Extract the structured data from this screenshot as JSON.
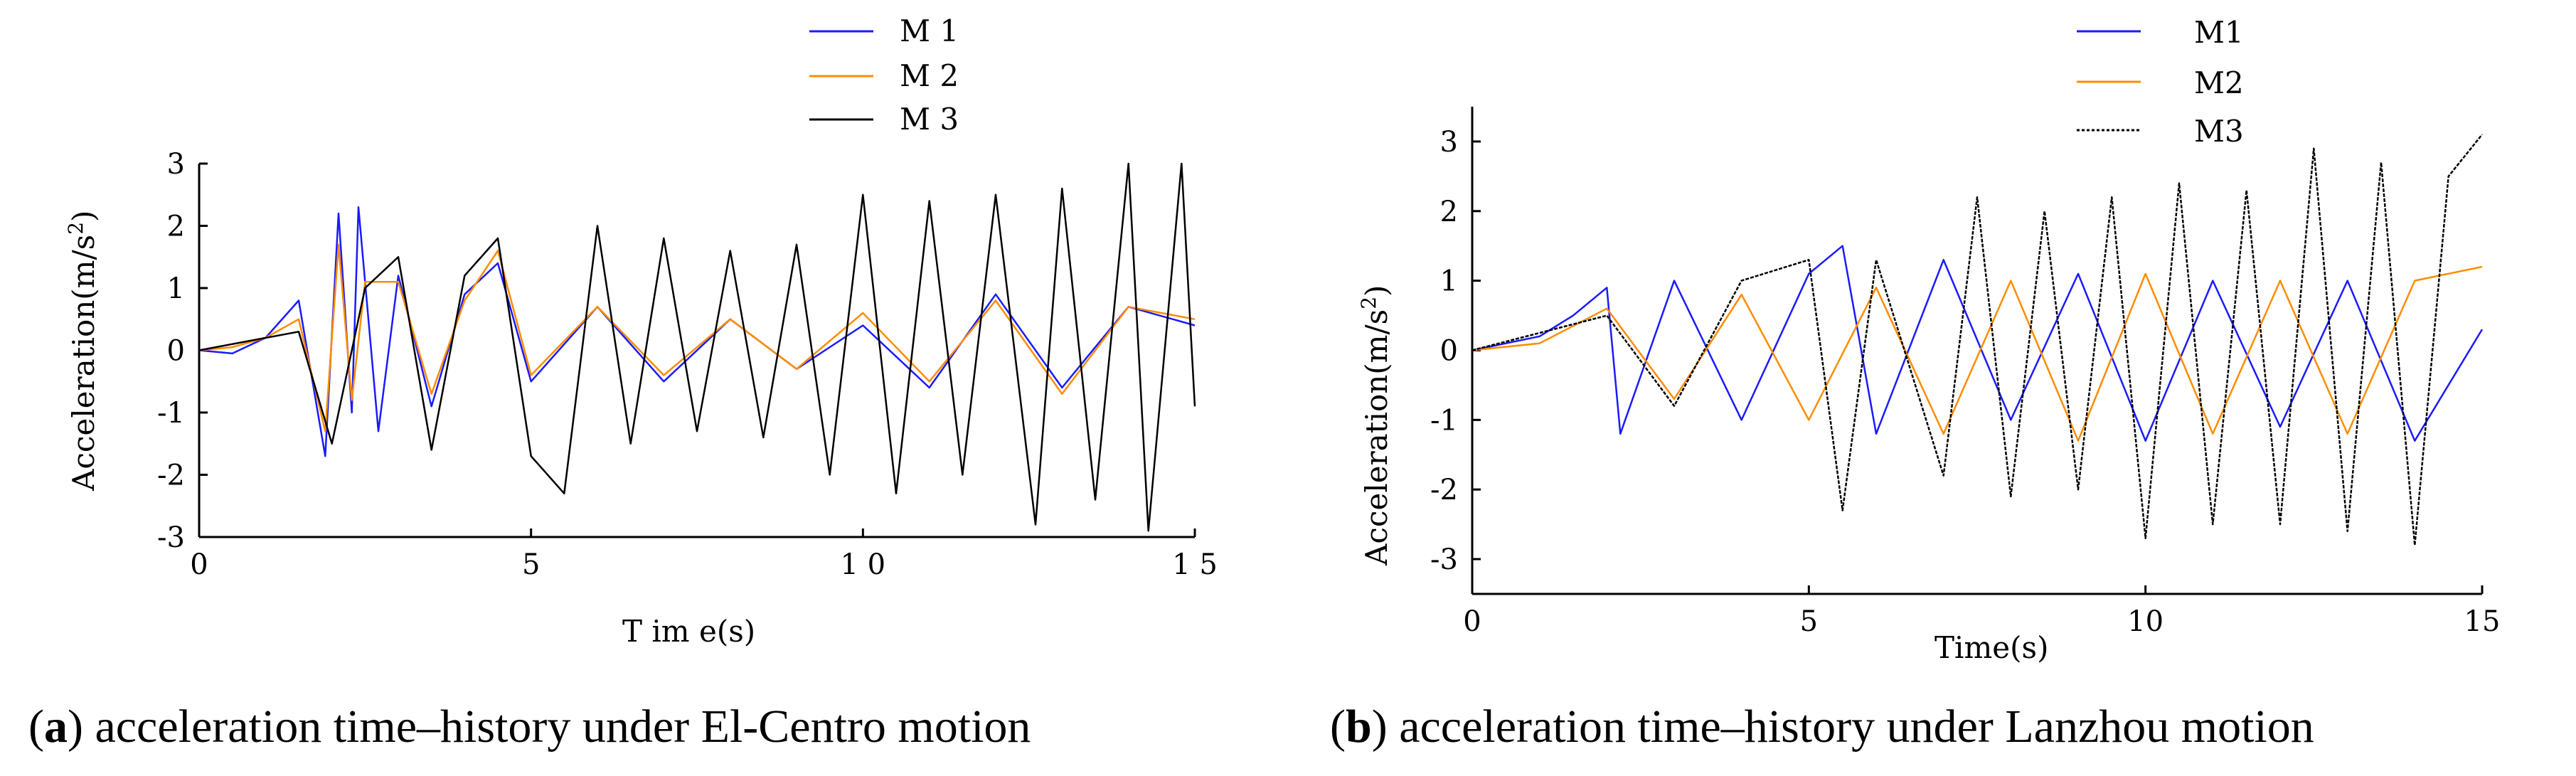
{
  "chart_data": [
    {
      "type": "line",
      "caption": {
        "letter": "a",
        "text": " acceleration time–history under El-Centro motion"
      },
      "xlabel": "T im e(s)",
      "ylabel": "Acceleration(m/s",
      "ylabel_sup": "2",
      "ylabel_tail": ")",
      "xlim": [
        0,
        15
      ],
      "ylim": [
        -3,
        3
      ],
      "xticks": [
        0,
        5,
        10,
        15
      ],
      "xtick_labels": [
        "0",
        "5",
        "1 0",
        "1 5"
      ],
      "yticks": [
        -3,
        -2,
        -1,
        0,
        1,
        2,
        3
      ],
      "ytick_labels": [
        "-3",
        "-2",
        "-1",
        "0",
        "1",
        "2",
        "3"
      ],
      "legend": [
        "M 1",
        "M 2",
        "M 3"
      ],
      "series": [
        {
          "name": "M 1",
          "color": "#1a1aff",
          "values": [
            [
              0,
              0
            ],
            [
              0.5,
              -0.05
            ],
            [
              1.0,
              0.2
            ],
            [
              1.5,
              0.8
            ],
            [
              1.9,
              -1.7
            ],
            [
              2.1,
              2.2
            ],
            [
              2.3,
              -1.0
            ],
            [
              2.4,
              2.3
            ],
            [
              2.7,
              -1.3
            ],
            [
              3.0,
              1.2
            ],
            [
              3.5,
              -0.9
            ],
            [
              4.0,
              0.9
            ],
            [
              4.5,
              1.4
            ],
            [
              5.0,
              -0.5
            ],
            [
              6.0,
              0.7
            ],
            [
              7.0,
              -0.5
            ],
            [
              8.0,
              0.5
            ],
            [
              9.0,
              -0.3
            ],
            [
              10.0,
              0.4
            ],
            [
              11.0,
              -0.6
            ],
            [
              12.0,
              0.9
            ],
            [
              13.0,
              -0.6
            ],
            [
              14.0,
              0.7
            ],
            [
              15.0,
              0.4
            ]
          ]
        },
        {
          "name": "M 2",
          "color": "#ff8c00",
          "values": [
            [
              0,
              0
            ],
            [
              0.5,
              0.05
            ],
            [
              1.0,
              0.2
            ],
            [
              1.5,
              0.5
            ],
            [
              1.9,
              -1.3
            ],
            [
              2.1,
              1.7
            ],
            [
              2.3,
              -0.8
            ],
            [
              2.5,
              1.1
            ],
            [
              3.0,
              1.1
            ],
            [
              3.5,
              -0.7
            ],
            [
              4.0,
              0.8
            ],
            [
              4.5,
              1.6
            ],
            [
              5.0,
              -0.4
            ],
            [
              6.0,
              0.7
            ],
            [
              7.0,
              -0.4
            ],
            [
              8.0,
              0.5
            ],
            [
              9.0,
              -0.3
            ],
            [
              10.0,
              0.6
            ],
            [
              11.0,
              -0.5
            ],
            [
              12.0,
              0.8
            ],
            [
              13.0,
              -0.7
            ],
            [
              14.0,
              0.7
            ],
            [
              15.0,
              0.5
            ]
          ]
        },
        {
          "name": "M 3",
          "color": "#000000",
          "values": [
            [
              0,
              0
            ],
            [
              1.5,
              0.3
            ],
            [
              2.0,
              -1.5
            ],
            [
              2.5,
              1.0
            ],
            [
              3.0,
              1.5
            ],
            [
              3.5,
              -1.6
            ],
            [
              4.0,
              1.2
            ],
            [
              4.5,
              1.8
            ],
            [
              5.0,
              -1.7
            ],
            [
              5.5,
              -2.3
            ],
            [
              6.0,
              2.0
            ],
            [
              6.5,
              -1.5
            ],
            [
              7.0,
              1.8
            ],
            [
              7.5,
              -1.3
            ],
            [
              8.0,
              1.6
            ],
            [
              8.5,
              -1.4
            ],
            [
              9.0,
              1.7
            ],
            [
              9.5,
              -2.0
            ],
            [
              10.0,
              2.5
            ],
            [
              10.5,
              -2.3
            ],
            [
              11.0,
              2.4
            ],
            [
              11.5,
              -2.0
            ],
            [
              12.0,
              2.5
            ],
            [
              12.6,
              -2.8
            ],
            [
              13.0,
              2.6
            ],
            [
              13.5,
              -2.4
            ],
            [
              14.0,
              3.0
            ],
            [
              14.3,
              -2.9
            ],
            [
              14.8,
              3.0
            ],
            [
              15.0,
              -0.9
            ]
          ]
        }
      ]
    },
    {
      "type": "line",
      "caption": {
        "letter": "b",
        "text": " acceleration time–history under Lanzhou motion"
      },
      "xlabel": "Time(s)",
      "ylabel": "Acceleration(m/s",
      "ylabel_sup": "2",
      "ylabel_tail": ")",
      "xlim": [
        0,
        15
      ],
      "ylim": [
        -3.5,
        3.5
      ],
      "xticks": [
        0,
        5,
        10,
        15
      ],
      "xtick_labels": [
        "0",
        "5",
        "10",
        "15"
      ],
      "yticks": [
        -3,
        -2,
        -1,
        0,
        1,
        2,
        3
      ],
      "ytick_labels": [
        "-3",
        "-2",
        "-1",
        "0",
        "1",
        "2",
        "3"
      ],
      "legend": [
        "M1",
        "M2",
        "M3"
      ],
      "series": [
        {
          "name": "M1",
          "color": "#1a1aff",
          "values": [
            [
              0,
              0
            ],
            [
              1,
              0.2
            ],
            [
              1.5,
              0.5
            ],
            [
              2.0,
              0.9
            ],
            [
              2.2,
              -1.2
            ],
            [
              3.0,
              1.0
            ],
            [
              4.0,
              -1.0
            ],
            [
              5.0,
              1.1
            ],
            [
              5.5,
              1.5
            ],
            [
              6.0,
              -1.2
            ],
            [
              7.0,
              1.3
            ],
            [
              8.0,
              -1.0
            ],
            [
              9.0,
              1.1
            ],
            [
              10.0,
              -1.3
            ],
            [
              11.0,
              1.0
            ],
            [
              12.0,
              -1.1
            ],
            [
              13.0,
              1.0
            ],
            [
              14.0,
              -1.3
            ],
            [
              15.0,
              0.3
            ]
          ]
        },
        {
          "name": "M2",
          "color": "#ff8c00",
          "values": [
            [
              0,
              0
            ],
            [
              1,
              0.1
            ],
            [
              2.0,
              0.6
            ],
            [
              3.0,
              -0.7
            ],
            [
              4.0,
              0.8
            ],
            [
              5.0,
              -1.0
            ],
            [
              6.0,
              0.9
            ],
            [
              7.0,
              -1.2
            ],
            [
              8.0,
              1.0
            ],
            [
              9.0,
              -1.3
            ],
            [
              10.0,
              1.1
            ],
            [
              11.0,
              -1.2
            ],
            [
              12.0,
              1.0
            ],
            [
              13.0,
              -1.2
            ],
            [
              14.0,
              1.0
            ],
            [
              15.0,
              1.2
            ]
          ]
        },
        {
          "name": "M3",
          "color": "#000000",
          "values": [
            [
              0,
              0
            ],
            [
              2.0,
              0.5
            ],
            [
              3.0,
              -0.8
            ],
            [
              4.0,
              1.0
            ],
            [
              5.0,
              1.3
            ],
            [
              5.5,
              -2.3
            ],
            [
              6.0,
              1.3
            ],
            [
              7.0,
              -1.8
            ],
            [
              7.5,
              2.2
            ],
            [
              8.0,
              -2.1
            ],
            [
              8.5,
              2.0
            ],
            [
              9.0,
              -2.0
            ],
            [
              9.5,
              2.2
            ],
            [
              10.0,
              -2.7
            ],
            [
              10.5,
              2.4
            ],
            [
              11.0,
              -2.5
            ],
            [
              11.5,
              2.3
            ],
            [
              12.0,
              -2.5
            ],
            [
              12.5,
              2.9
            ],
            [
              13.0,
              -2.6
            ],
            [
              13.5,
              2.7
            ],
            [
              14.0,
              -2.8
            ],
            [
              14.5,
              2.5
            ],
            [
              15.0,
              3.1
            ]
          ]
        }
      ]
    }
  ]
}
